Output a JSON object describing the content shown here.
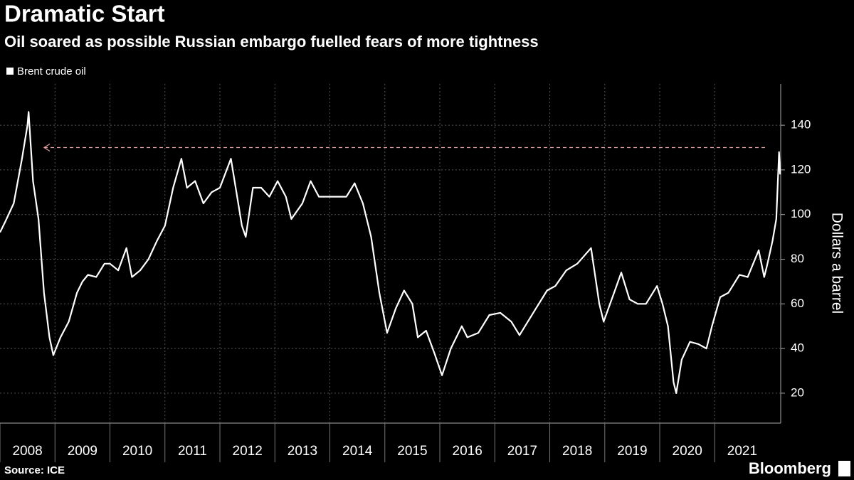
{
  "chart_data": {
    "type": "line",
    "title": "Dramatic Start",
    "subtitle": "Oil soared as possible Russian embargo fuelled fears of more tightness",
    "y_label": "Dollars a barrel",
    "source": "Source: ICE",
    "brand": "Bloomberg",
    "x": [
      2008.0,
      2008.1,
      2008.25,
      2008.4,
      2008.5,
      2008.52,
      2008.6,
      2008.7,
      2008.8,
      2008.9,
      2008.97,
      2009.1,
      2009.25,
      2009.4,
      2009.5,
      2009.6,
      2009.75,
      2009.9,
      2010.0,
      2010.15,
      2010.3,
      2010.4,
      2010.55,
      2010.7,
      2010.85,
      2011.0,
      2011.15,
      2011.3,
      2011.4,
      2011.55,
      2011.7,
      2011.85,
      2012.0,
      2012.2,
      2012.4,
      2012.47,
      2012.6,
      2012.75,
      2012.9,
      2013.05,
      2013.2,
      2013.3,
      2013.5,
      2013.65,
      2013.8,
      2014.0,
      2014.3,
      2014.45,
      2014.6,
      2014.75,
      2014.9,
      2015.04,
      2015.2,
      2015.35,
      2015.5,
      2015.6,
      2015.75,
      2015.9,
      2016.04,
      2016.2,
      2016.4,
      2016.5,
      2016.7,
      2016.9,
      2017.1,
      2017.3,
      2017.45,
      2017.6,
      2017.75,
      2017.95,
      2018.1,
      2018.3,
      2018.5,
      2018.75,
      2018.9,
      2018.98,
      2019.2,
      2019.3,
      2019.45,
      2019.6,
      2019.75,
      2019.95,
      2020.05,
      2020.15,
      2020.25,
      2020.3,
      2020.4,
      2020.55,
      2020.7,
      2020.85,
      2020.95,
      2021.1,
      2021.25,
      2021.45,
      2021.6,
      2021.8,
      2021.9,
      2021.95,
      2022.05,
      2022.12,
      2022.17,
      2022.19
    ],
    "series": [
      {
        "name": "Brent crude oil",
        "color": "#ffffff",
        "values": [
          92,
          97,
          105,
          125,
          140,
          146,
          115,
          98,
          65,
          45,
          37,
          45,
          52,
          65,
          70,
          73,
          72,
          78,
          78,
          75,
          85,
          72,
          75,
          80,
          88,
          95,
          112,
          125,
          112,
          115,
          105,
          110,
          112,
          125,
          95,
          90,
          112,
          112,
          108,
          115,
          108,
          98,
          105,
          115,
          108,
          108,
          108,
          114,
          105,
          90,
          65,
          47,
          58,
          66,
          60,
          45,
          48,
          38,
          28,
          40,
          50,
          45,
          47,
          55,
          56,
          52,
          46,
          52,
          58,
          66,
          68,
          75,
          78,
          85,
          60,
          52,
          67,
          74,
          62,
          60,
          60,
          68,
          60,
          50,
          25,
          20,
          35,
          43,
          42,
          40,
          50,
          63,
          65,
          73,
          72,
          84,
          72,
          77,
          88,
          98,
          128,
          118
        ]
      }
    ],
    "reference_line": 130,
    "reference_color": "#e8a0a0",
    "xlim": [
      2008,
      2022.2
    ],
    "xticks": [
      2008,
      2009,
      2010,
      2011,
      2012,
      2013,
      2014,
      2015,
      2016,
      2017,
      2018,
      2019,
      2020,
      2021
    ],
    "ylim": [
      6.6,
      158.5
    ],
    "yticks": [
      20,
      40,
      60,
      80,
      100,
      120,
      140
    ],
    "grid": true
  }
}
